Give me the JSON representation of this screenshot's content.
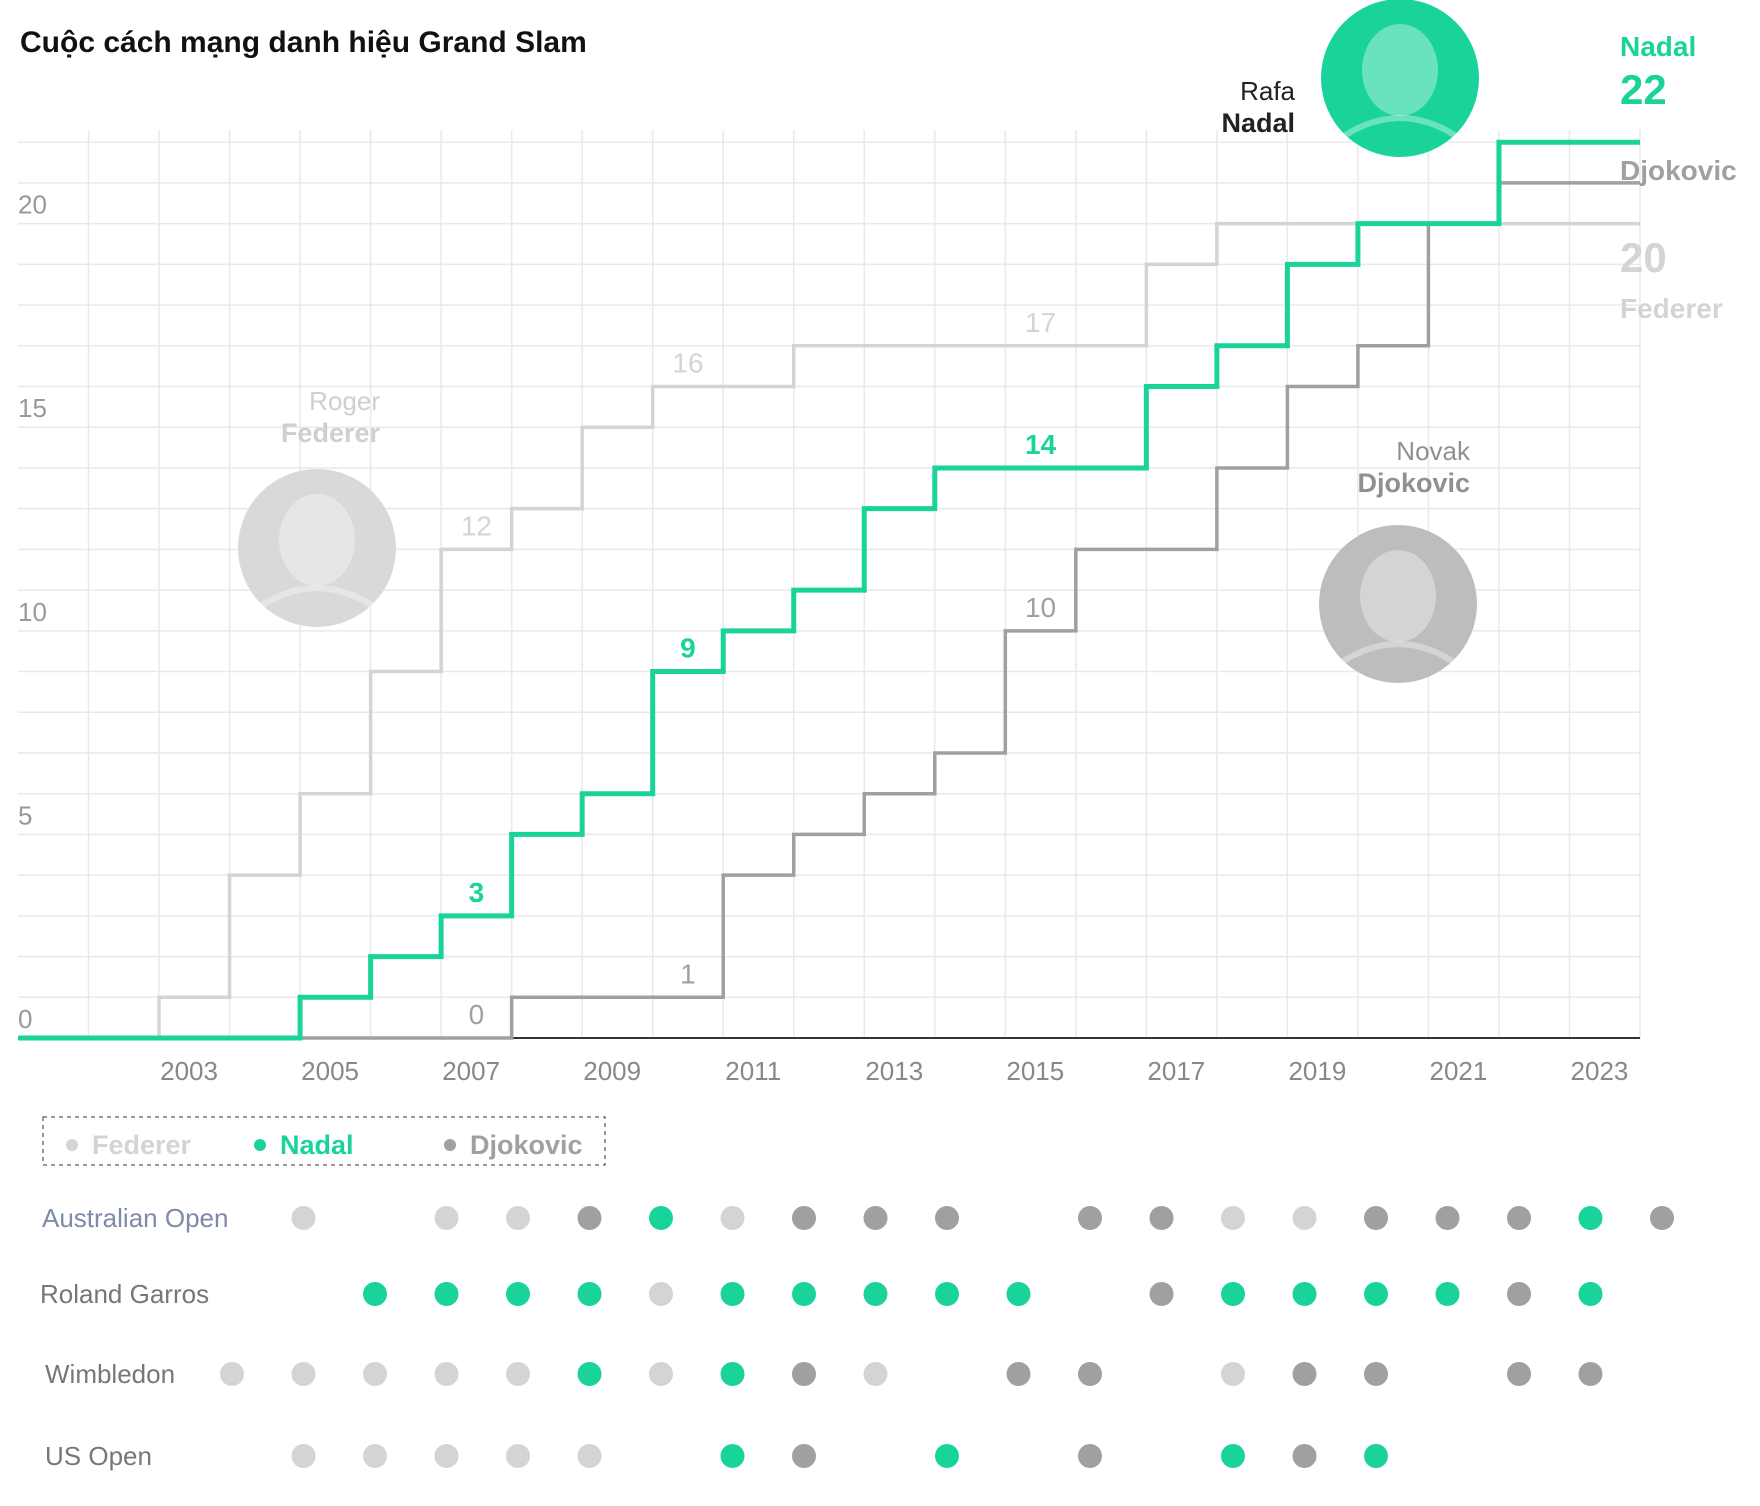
{
  "chart_data": {
    "type": "line",
    "title": "Cuộc cách mạng danh hiệu Grand Slam",
    "xlabel": "",
    "ylabel": "",
    "xlim": [
      2001,
      2024
    ],
    "ylim": [
      0,
      22
    ],
    "x_ticks": [
      "2003",
      "2005",
      "2007",
      "2009",
      "2011",
      "2013",
      "2015",
      "2017",
      "2019",
      "2021",
      "2023"
    ],
    "y_ticks": [
      "0",
      "5",
      "10",
      "15",
      "20"
    ],
    "grid": true,
    "colors": {
      "Federer": "#d4d4d4",
      "Nadal": "#19d39b",
      "Djokovic": "#a0a0a0"
    },
    "series": [
      {
        "name": "Federer",
        "steps": [
          [
            2002,
            0
          ],
          [
            2003,
            1
          ],
          [
            2004,
            4
          ],
          [
            2005,
            6
          ],
          [
            2006,
            9
          ],
          [
            2007,
            12
          ],
          [
            2008,
            13
          ],
          [
            2009,
            15
          ],
          [
            2010,
            16
          ],
          [
            2012,
            17
          ],
          [
            2017,
            19
          ],
          [
            2018,
            20
          ]
        ],
        "end": 2024
      },
      {
        "name": "Nadal",
        "steps": [
          [
            2001,
            0
          ],
          [
            2005,
            1
          ],
          [
            2006,
            2
          ],
          [
            2007,
            3
          ],
          [
            2008,
            5
          ],
          [
            2009,
            6
          ],
          [
            2010,
            9
          ],
          [
            2011,
            10
          ],
          [
            2012,
            11
          ],
          [
            2013,
            13
          ],
          [
            2014,
            14
          ],
          [
            2017,
            16
          ],
          [
            2018,
            17
          ],
          [
            2019,
            19
          ],
          [
            2020,
            20
          ],
          [
            2022,
            22
          ]
        ],
        "end": 2024
      },
      {
        "name": "Djokovic",
        "steps": [
          [
            2002,
            0
          ],
          [
            2008,
            1
          ],
          [
            2011,
            4
          ],
          [
            2012,
            5
          ],
          [
            2013,
            6
          ],
          [
            2014,
            7
          ],
          [
            2015,
            10
          ],
          [
            2016,
            12
          ],
          [
            2018,
            14
          ],
          [
            2019,
            16
          ],
          [
            2020,
            17
          ],
          [
            2021,
            20
          ],
          [
            2022,
            21
          ]
        ],
        "end": 2024
      }
    ],
    "annotations": [
      {
        "series": "Federer",
        "text": "12",
        "x": 2007.5,
        "y": 12
      },
      {
        "series": "Federer",
        "text": "16",
        "x": 2010.5,
        "y": 16
      },
      {
        "series": "Federer",
        "text": "17",
        "x": 2015.5,
        "y": 17
      },
      {
        "series": "Nadal",
        "text": "3",
        "x": 2007.5,
        "y": 3
      },
      {
        "series": "Nadal",
        "text": "9",
        "x": 2010.5,
        "y": 9
      },
      {
        "series": "Nadal",
        "text": "14",
        "x": 2015.5,
        "y": 14
      },
      {
        "series": "Djokovic",
        "text": "0",
        "x": 2007.5,
        "y": 0
      },
      {
        "series": "Djokovic",
        "text": "1",
        "x": 2010.5,
        "y": 1
      },
      {
        "series": "Djokovic",
        "text": "10",
        "x": 2015.5,
        "y": 10
      }
    ],
    "player_labels": [
      {
        "series": "Federer",
        "first": "Roger",
        "last": "Federer",
        "photo": "federer-photo"
      },
      {
        "series": "Nadal",
        "first": "Rafa",
        "last": "Nadal",
        "photo": "nadal-photo"
      },
      {
        "series": "Djokovic",
        "first": "Novak",
        "last": "Djokovic",
        "photo": "djokovic-photo"
      }
    ],
    "end_labels": [
      {
        "series": "Nadal",
        "name": "Nadal",
        "value": "22"
      },
      {
        "series": "Djokovic",
        "name": "Djokovic",
        "value": ""
      },
      {
        "series": "Federer",
        "name": "Federer",
        "value": "20"
      }
    ],
    "legend": {
      "placement": "bottom-left",
      "items": [
        "Federer",
        "Nadal",
        "Djokovic"
      ]
    },
    "dot_grid": {
      "year_start": 2002,
      "rows": [
        {
          "label": "Australian Open",
          "winners": [
            null,
            "Federer",
            null,
            "Federer",
            "Federer",
            "Djokovic",
            "Nadal",
            "Federer",
            "Djokovic",
            "Djokovic",
            "Djokovic",
            null,
            "Djokovic",
            "Djokovic",
            "Federer",
            "Federer",
            "Djokovic",
            "Djokovic",
            "Djokovic",
            "Nadal",
            "Djokovic"
          ]
        },
        {
          "label": "Roland Garros",
          "winners": [
            null,
            null,
            "Nadal",
            "Nadal",
            "Nadal",
            "Nadal",
            "Federer",
            "Nadal",
            "Nadal",
            "Nadal",
            "Nadal",
            "Nadal",
            null,
            "Djokovic",
            "Nadal",
            "Nadal",
            "Nadal",
            "Nadal",
            "Djokovic",
            "Nadal",
            null
          ]
        },
        {
          "label": "Wimbledon",
          "winners": [
            "Federer",
            "Federer",
            "Federer",
            "Federer",
            "Federer",
            "Nadal",
            "Federer",
            "Nadal",
            "Djokovic",
            "Federer",
            null,
            "Djokovic",
            "Djokovic",
            null,
            "Federer",
            "Djokovic",
            "Djokovic",
            null,
            "Djokovic",
            "Djokovic",
            null
          ]
        },
        {
          "label": "US Open",
          "winners": [
            null,
            "Federer",
            "Federer",
            "Federer",
            "Federer",
            "Federer",
            null,
            "Nadal",
            "Djokovic",
            null,
            "Nadal",
            null,
            "Djokovic",
            null,
            "Nadal",
            "Djokovic",
            "Nadal",
            null,
            null,
            null,
            null
          ]
        }
      ]
    }
  }
}
